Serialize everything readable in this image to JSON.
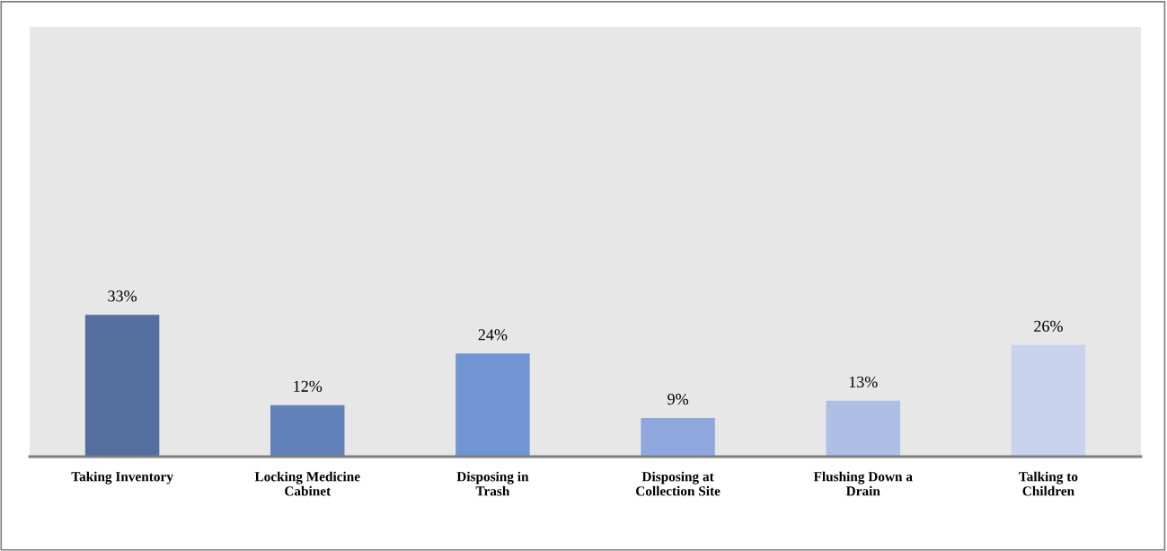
{
  "chart_data": {
    "type": "bar",
    "categories": [
      "Taking Inventory",
      "Locking Medicine\nCabinet",
      "Disposing in\nTrash",
      "Disposing at\nCollection Site",
      "Flushing Down a\nDrain",
      "Talking to\nChildren"
    ],
    "values": [
      33,
      12,
      24,
      9,
      13,
      26
    ],
    "colors": [
      "#546ea0",
      "#6482ba",
      "#7095d2",
      "#8ea8de",
      "#aebfe6",
      "#c8d3ee"
    ],
    "value_labels": [
      "33%",
      "12%",
      "24%",
      "9%",
      "13%",
      "26%"
    ],
    "ylim": [
      0,
      100
    ],
    "grid": false,
    "legend": false,
    "tick_labels": "x"
  }
}
